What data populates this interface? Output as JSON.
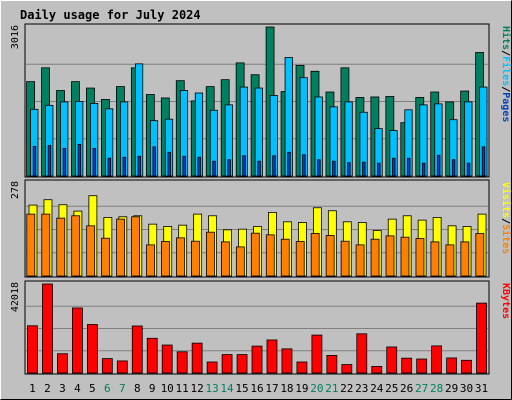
{
  "colors": {
    "background": "#c0c0c0",
    "plot_bg": "#c0c0c0",
    "title": "#0000cc",
    "hits": "#008060",
    "files": "#00c0ff",
    "pages": "#0040c0",
    "visits": "#ffff00",
    "sites": "#ff8000",
    "kbytes": "#ff0000",
    "weekend_label": "#008060",
    "weekday_label": "#000000",
    "grid": "#808080"
  },
  "chart_data": {
    "type": "bar",
    "title": "Daily usage for July 2024",
    "categories": [
      "1",
      "2",
      "3",
      "4",
      "5",
      "6",
      "7",
      "8",
      "9",
      "10",
      "11",
      "12",
      "13",
      "14",
      "15",
      "16",
      "17",
      "18",
      "19",
      "20",
      "21",
      "22",
      "23",
      "24",
      "25",
      "26",
      "27",
      "28",
      "29",
      "30",
      "31"
    ],
    "weekend_days": [
      "6",
      "7",
      "13",
      "14",
      "20",
      "21",
      "27",
      "28"
    ],
    "legend_placement": "right",
    "grid": true,
    "panels": [
      {
        "id": "hits-files-pages",
        "ymax_label": "3016",
        "ylim": [
          0,
          3016
        ],
        "legend": [
          "Pages",
          "/",
          "Files",
          "/",
          "Hits"
        ],
        "series": [
          {
            "name": "Hits",
            "values": [
              1910,
              2190,
              1730,
              1910,
              1780,
              1550,
              1810,
              2190,
              1650,
              1580,
              1930,
              1520,
              1810,
              1950,
              2290,
              2050,
              3016,
              1710,
              2240,
              2120,
              1700,
              2190,
              1590,
              1600,
              1610,
              1080,
              1590,
              1700,
              1500,
              1720,
              2500
            ]
          },
          {
            "name": "Files",
            "values": [
              1350,
              1430,
              1500,
              1510,
              1470,
              1360,
              1500,
              2270,
              1120,
              1150,
              1730,
              1680,
              1330,
              1440,
              1800,
              1780,
              1630,
              2400,
              1990,
              1600,
              1400,
              1500,
              1290,
              960,
              920,
              1340,
              1440,
              1460,
              1140,
              1500,
              1800
            ]
          },
          {
            "name": "Pages",
            "values": [
              600,
              620,
              560,
              640,
              560,
              360,
              380,
              400,
              590,
              480,
              400,
              380,
              300,
              330,
              410,
              300,
              410,
              480,
              430,
              330,
              300,
              270,
              280,
              260,
              360,
              360,
              260,
              420,
              330,
              260,
              590
            ]
          }
        ]
      },
      {
        "id": "visits-sites",
        "ymax_label": "278",
        "ylim": [
          0,
          278
        ],
        "legend": [
          "Sites",
          "/",
          "Visits"
        ],
        "series": [
          {
            "name": "Visits",
            "values": [
              212,
              228,
              213,
              194,
              240,
              175,
              177,
              180,
              155,
              148,
              152,
              185,
              180,
              138,
              140,
              148,
              190,
              162,
              160,
              204,
              195,
              162,
              160,
              136,
              170,
              180,
              167,
              175,
              150,
              148,
              185
            ]
          },
          {
            "name": "Sites",
            "values": [
              185,
              185,
              173,
              180,
              150,
              113,
              170,
              177,
              93,
              103,
              114,
              104,
              131,
              102,
              87,
              128,
              123,
              110,
              103,
              127,
              121,
              104,
              93,
              110,
              120,
              116,
              112,
              102,
              93,
              102,
              127
            ]
          }
        ]
      },
      {
        "id": "kbytes",
        "ymax_label": "42018",
        "ylim": [
          0,
          42018
        ],
        "legend": [
          "KBytes"
        ],
        "series": [
          {
            "name": "KBytes",
            "values": [
              22300,
              42018,
              9100,
              30700,
              22900,
              6800,
              5700,
              22200,
              16400,
              13200,
              10000,
              14100,
              5200,
              8700,
              8700,
              12700,
              15600,
              11400,
              5200,
              17900,
              8300,
              4000,
              18500,
              3100,
              12300,
              7000,
              6600,
              12800,
              7100,
              6000,
              33000
            ]
          }
        ]
      }
    ]
  }
}
